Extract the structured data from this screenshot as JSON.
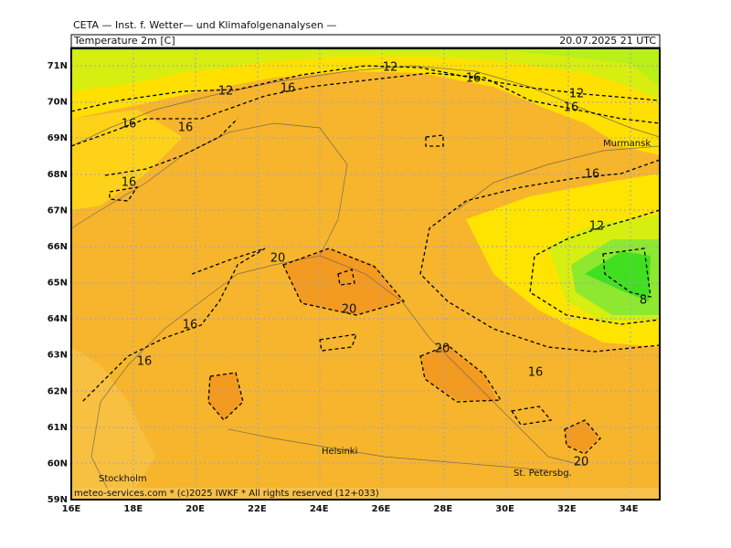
{
  "header": {
    "institute": "CETA — Inst. f. Wetter— und Klimafolgenanalysen —",
    "variable": "Temperature 2m [C]",
    "valid_time": "20.07.2025 21 UTC"
  },
  "latitude_labels": [
    "71N",
    "70N",
    "69N",
    "68N",
    "67N",
    "66N",
    "65N",
    "64N",
    "63N",
    "62N",
    "61N",
    "60N",
    "59N"
  ],
  "longitude_labels": [
    "16E",
    "18E",
    "20E",
    "22E",
    "24E",
    "26E",
    "28E",
    "30E",
    "32E",
    "34E"
  ],
  "places": [
    "Murmansk",
    "Helsinki",
    "Stockholm",
    "St. Petersbg."
  ],
  "contour_labels": [
    12,
    16,
    12,
    16,
    12,
    16,
    16,
    16,
    16,
    16,
    12,
    20,
    8,
    20,
    16,
    20,
    16,
    16,
    20
  ],
  "footer": "meteo-services.com * (c)2025 IWKF * All rights reserved (12+033)"
}
